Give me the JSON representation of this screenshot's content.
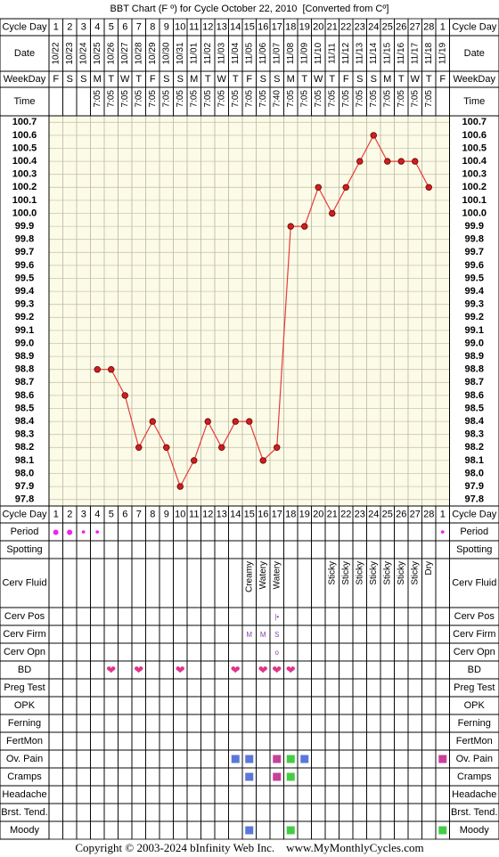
{
  "chart_data": {
    "type": "line",
    "title": "BBT Chart (F º) for Cycle October 22, 2010  [Converted from Cº]",
    "categories": [
      "1",
      "2",
      "3",
      "4",
      "5",
      "6",
      "7",
      "8",
      "9",
      "10",
      "11",
      "12",
      "13",
      "14",
      "15",
      "16",
      "17",
      "18",
      "19",
      "20",
      "21",
      "22",
      "23",
      "24",
      "25",
      "26",
      "27",
      "28",
      "1"
    ],
    "dates": [
      "10/22",
      "10/23",
      "10/24",
      "10/25",
      "10/26",
      "10/27",
      "10/28",
      "10/29",
      "10/30",
      "10/31",
      "11/01",
      "11/02",
      "11/03",
      "11/04",
      "11/05",
      "11/06",
      "11/07",
      "11/08",
      "11/09",
      "11/10",
      "11/11",
      "11/12",
      "11/13",
      "11/14",
      "11/15",
      "11/16",
      "11/17",
      "11/18",
      "11/19"
    ],
    "weekdays": [
      "F",
      "S",
      "S",
      "M",
      "T",
      "W",
      "T",
      "F",
      "S",
      "S",
      "M",
      "T",
      "W",
      "T",
      "F",
      "S",
      "S",
      "M",
      "T",
      "W",
      "T",
      "F",
      "S",
      "S",
      "M",
      "T",
      "W",
      "T",
      "F"
    ],
    "times": [
      null,
      null,
      null,
      "7:05",
      "7:05",
      "7:05",
      "7:05",
      "7:05",
      "7:05",
      "7:05",
      "7:05",
      "7:05",
      "7:05",
      "7:05",
      "7:05",
      "7:05",
      "7:40",
      "7:05",
      "7:05",
      "7:05",
      "7:05",
      "7:05",
      "7:05",
      "7:05",
      "7:05",
      "7:05",
      "7:05",
      "7:05",
      null
    ],
    "values": [
      null,
      null,
      null,
      98.8,
      98.8,
      98.6,
      98.2,
      98.4,
      98.2,
      97.9,
      98.1,
      98.4,
      98.2,
      98.4,
      98.4,
      98.1,
      98.2,
      99.9,
      99.9,
      100.2,
      100.0,
      100.2,
      100.4,
      100.6,
      100.4,
      100.4,
      100.4,
      100.2,
      null
    ],
    "color": "#e83a3a",
    "marker_color": "#cc1f1f",
    "ylim": [
      97.75,
      100.75
    ],
    "yticks": [
      97.8,
      97.9,
      {
        "value": 98,
        "label": "98.0"
      },
      98.1,
      98.2,
      98.3,
      98.4,
      98.5,
      98.6,
      98.7,
      98.8,
      98.9,
      {
        "value": 99,
        "label": "99.0"
      },
      99.1,
      99.2,
      99.3,
      99.4,
      99.5,
      99.6,
      99.7,
      99.8,
      99.9,
      {
        "value": 100,
        "label": "100.0"
      },
      100.1,
      100.2,
      100.3,
      100.4,
      100.5,
      100.6,
      100.7
    ],
    "grid": true
  },
  "labels": {
    "cycle_day": "Cycle Day",
    "date": "Date",
    "weekday": "WeekDay",
    "time": "Time"
  },
  "records": [
    {
      "label": "Period",
      "values": [
        "●",
        "●",
        "•",
        "•",
        null,
        null,
        null,
        null,
        null,
        null,
        null,
        null,
        null,
        null,
        null,
        null,
        null,
        null,
        null,
        null,
        null,
        null,
        null,
        null,
        null,
        null,
        null,
        null,
        "•"
      ]
    },
    {
      "label": "Spotting"
    },
    {
      "label": "Cerv Fluid",
      "values": [
        null,
        null,
        null,
        null,
        null,
        null,
        null,
        null,
        null,
        null,
        null,
        null,
        null,
        null,
        "Creamy",
        "Watery",
        "Watery",
        null,
        null,
        null,
        "Sticky",
        "Sticky",
        "Sticky",
        "Sticky",
        "Sticky",
        "Sticky",
        "Sticky",
        "Dry",
        null
      ]
    },
    {
      "label": "Cerv Pos",
      "values": [
        null,
        null,
        null,
        null,
        null,
        null,
        null,
        null,
        null,
        null,
        null,
        null,
        null,
        null,
        null,
        null,
        "|•",
        null,
        null,
        null,
        null,
        null,
        null,
        null,
        null,
        null,
        null,
        null,
        null
      ]
    },
    {
      "label": "Cerv Firm",
      "values": [
        null,
        null,
        null,
        null,
        null,
        null,
        null,
        null,
        null,
        null,
        null,
        null,
        null,
        null,
        "M",
        "M",
        "S",
        null,
        null,
        null,
        null,
        null,
        null,
        null,
        null,
        null,
        null,
        null,
        null
      ]
    },
    {
      "label": "Cerv Opn",
      "values": [
        null,
        null,
        null,
        null,
        null,
        null,
        null,
        null,
        null,
        null,
        null,
        null,
        null,
        null,
        null,
        null,
        "o",
        null,
        null,
        null,
        null,
        null,
        null,
        null,
        null,
        null,
        null,
        null,
        null
      ]
    },
    {
      "label": "BD",
      "values": [
        null,
        null,
        null,
        null,
        "❤",
        null,
        "❤",
        null,
        null,
        "❤",
        null,
        null,
        null,
        "❤",
        null,
        "❤",
        "❤",
        "❤",
        null,
        null,
        null,
        null,
        null,
        null,
        null,
        null,
        null,
        null,
        null
      ]
    },
    {
      "label": "Preg Test"
    },
    {
      "label": "OPK"
    },
    {
      "label": "Ferning"
    },
    {
      "label": "FertMon"
    },
    {
      "label": "Ov. Pain",
      "colors": [
        null,
        null,
        null,
        null,
        null,
        null,
        null,
        null,
        null,
        null,
        null,
        null,
        null,
        "#5b78d8",
        "#5b78d8",
        null,
        "#c8409a",
        "#44cc44",
        "#5b78d8",
        null,
        null,
        null,
        null,
        null,
        null,
        null,
        null,
        null,
        "#c8409a"
      ]
    },
    {
      "label": "Cramps",
      "colors": [
        null,
        null,
        null,
        null,
        null,
        null,
        null,
        null,
        null,
        null,
        null,
        null,
        null,
        null,
        "#5b78d8",
        null,
        "#c8409a",
        "#44cc44",
        null,
        null,
        null,
        null,
        null,
        null,
        null,
        null,
        null,
        null,
        null
      ]
    },
    {
      "label": "Headache"
    },
    {
      "label": "Brst. Tend."
    },
    {
      "label": "Moody",
      "colors": [
        null,
        null,
        null,
        null,
        null,
        null,
        null,
        null,
        null,
        null,
        null,
        null,
        null,
        null,
        "#5b78d8",
        null,
        null,
        "#44cc44",
        null,
        null,
        null,
        null,
        null,
        null,
        null,
        null,
        null,
        null,
        "#44cc44"
      ]
    }
  ],
  "footer": "Copyright © 2003-2024 bInfinity Web Inc.    www.MyMonthlyCycles.com"
}
